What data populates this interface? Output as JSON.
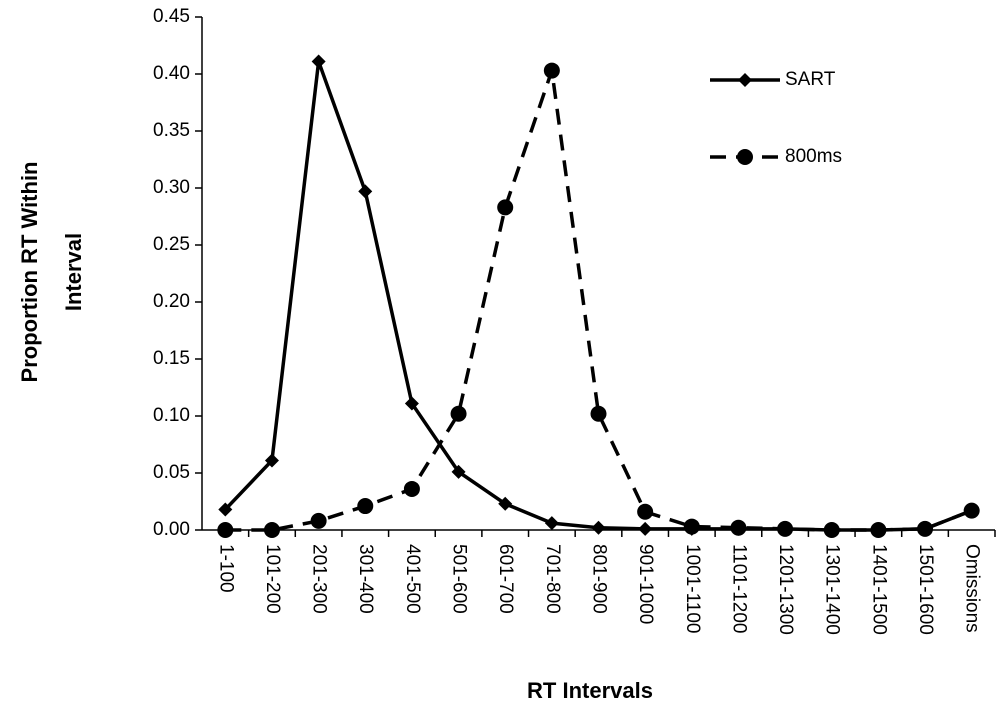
{
  "chart_data": {
    "type": "line",
    "x_label": "RT Intervals",
    "y_label": [
      "Proportion RT Within",
      "Interval"
    ],
    "categories": [
      "1-100",
      "101-200",
      "201-300",
      "301-400",
      "401-500",
      "501-600",
      "601-700",
      "701-800",
      "801-900",
      "901-1000",
      "1001-1100",
      "1101-1200",
      "1201-1300",
      "1301-1400",
      "1401-1500",
      "1501-1600",
      "Omissions"
    ],
    "series": [
      {
        "name": "SART",
        "color": "#000000",
        "dash": false,
        "marker": "diamond",
        "values": [
          0.018,
          0.061,
          0.411,
          0.297,
          0.111,
          0.051,
          0.023,
          0.006,
          0.002,
          0.001,
          0.001,
          0.001,
          0.001,
          0.0,
          0.0,
          0.001,
          0.017
        ]
      },
      {
        "name": "800ms",
        "color": "#000000",
        "dash": true,
        "marker": "circle",
        "values": [
          0.0,
          0.0,
          0.008,
          0.021,
          0.036,
          0.102,
          0.283,
          0.403,
          0.102,
          0.016,
          0.003,
          0.002,
          0.001,
          0.0,
          0.0,
          0.001,
          0.017
        ]
      }
    ],
    "ylim": [
      0,
      0.45
    ],
    "yticks": [
      {
        "value": 0,
        "label": "0.00"
      },
      {
        "value": 0.05,
        "label": "0.05"
      },
      {
        "value": 0.1,
        "label": "0.10"
      },
      {
        "value": 0.15,
        "label": "0.15"
      },
      {
        "value": 0.2,
        "label": "0.20"
      },
      {
        "value": 0.25,
        "label": "0.25"
      },
      {
        "value": 0.3,
        "label": "0.30"
      },
      {
        "value": 0.35,
        "label": "0.35"
      },
      {
        "value": 0.4,
        "label": "0.40"
      },
      {
        "value": 0.45,
        "label": "0.45"
      }
    ],
    "grid": false,
    "legend": "upper right"
  }
}
